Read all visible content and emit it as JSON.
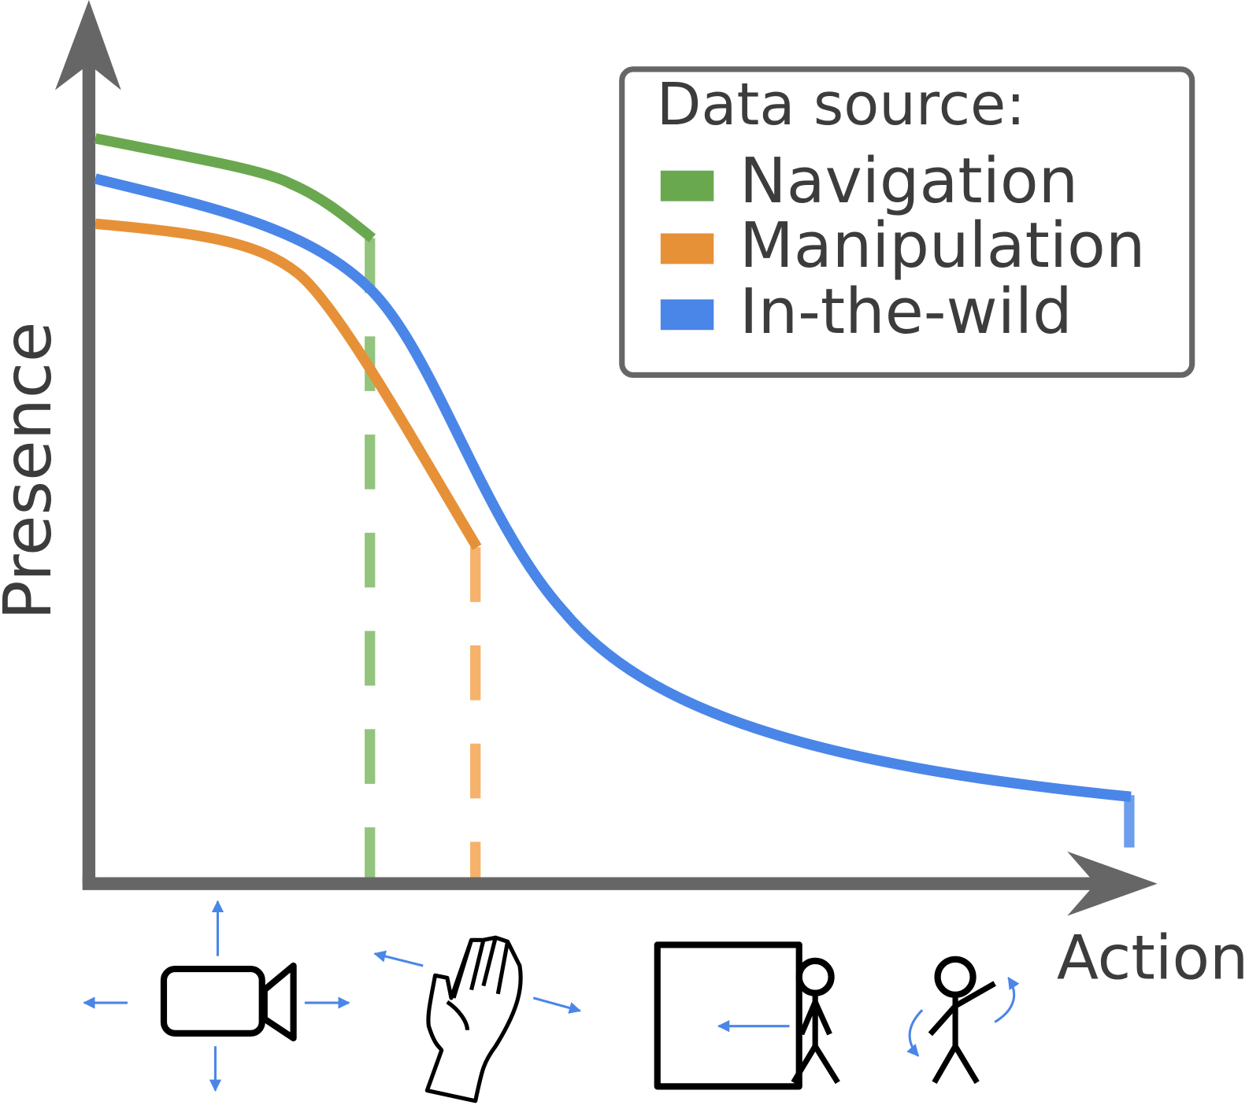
{
  "axes": {
    "y_label": "Presence",
    "x_label": "Action"
  },
  "legend": {
    "title": "Data source:",
    "entries": [
      "Navigation",
      "Manipulation",
      "In-the-wild"
    ]
  }
}
